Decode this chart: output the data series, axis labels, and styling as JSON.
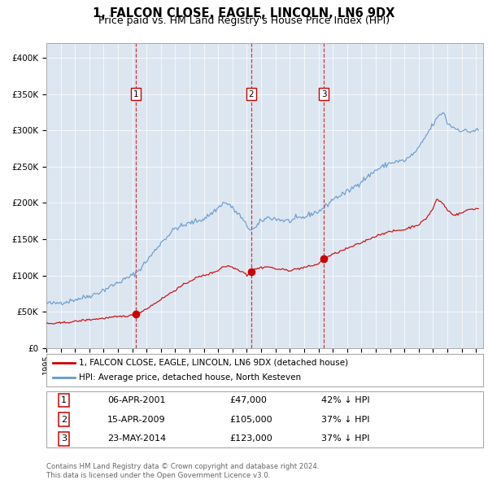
{
  "title": "1, FALCON CLOSE, EAGLE, LINCOLN, LN6 9DX",
  "subtitle": "Price paid vs. HM Land Registry's House Price Index (HPI)",
  "title_fontsize": 10.5,
  "subtitle_fontsize": 9,
  "bg_color": "#dce6f1",
  "legend_label_red": "1, FALCON CLOSE, EAGLE, LINCOLN, LN6 9DX (detached house)",
  "legend_label_blue": "HPI: Average price, detached house, North Kesteven",
  "footer": "Contains HM Land Registry data © Crown copyright and database right 2024.\nThis data is licensed under the Open Government Licence v3.0.",
  "sales": [
    {
      "num": 1,
      "date": "06-APR-2001",
      "price": 47000,
      "pct": "42% ↓ HPI",
      "x": 2001.27
    },
    {
      "num": 2,
      "date": "15-APR-2009",
      "price": 105000,
      "pct": "37% ↓ HPI",
      "x": 2009.29
    },
    {
      "num": 3,
      "date": "23-MAY-2014",
      "price": 123000,
      "pct": "37% ↓ HPI",
      "x": 2014.39
    }
  ],
  "red_color": "#cc0000",
  "blue_color": "#6699cc",
  "dashed_color": "#cc0000",
  "label_box_color": "#cc0000",
  "ylim": [
    0,
    420000
  ],
  "xlim_start": 1995.0,
  "xlim_end": 2025.5
}
